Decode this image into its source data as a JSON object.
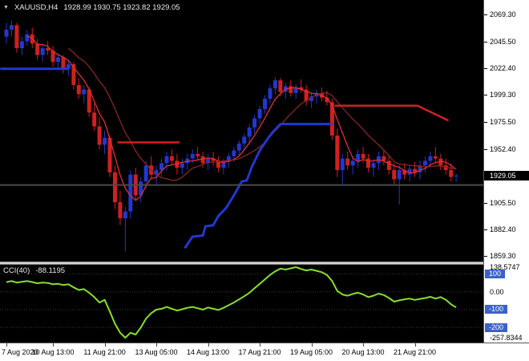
{
  "header": {
    "marker": "▼",
    "symbol_label": "XAUUSD,H4",
    "ohlc_readout": "1928.99 1930.75 1923.82 1929.05"
  },
  "indicator_header": {
    "label": "CCI(40)",
    "value": "-88.1195"
  },
  "colors": {
    "background": "#000000",
    "bull": "#2138cf",
    "bear": "#d02020",
    "ma_fast": "#e03030",
    "ma_slow": "#8b2424",
    "cci_line": "#86df2a",
    "badge_blue": "#3b62c9",
    "object_black": "#4a4a4a",
    "axis_bg": "#ffffff"
  },
  "price_axis": {
    "ticks": [
      "2069.30",
      "2045.50",
      "2022.40",
      "1999.30",
      "1975.50",
      "1952.40",
      "1905.50",
      "1882.40",
      "1859.30"
    ],
    "current": "1929.05"
  },
  "cci_axis": {
    "items": [
      {
        "text": "138.5747",
        "v": 138.5747,
        "style": "plain"
      },
      {
        "text": "100",
        "v": 100,
        "style": "badge"
      },
      {
        "text": "0.00",
        "v": 0,
        "style": "plain"
      },
      {
        "text": "-100",
        "v": -100,
        "style": "badge"
      },
      {
        "text": "-200",
        "v": -200,
        "style": "badge"
      },
      {
        "text": "-257.8344",
        "v": -257.8344,
        "style": "plain"
      }
    ]
  },
  "time_axis": {
    "items": [
      {
        "text": "7 Aug 2020",
        "i": 0
      },
      {
        "text": "10 Aug 13:00",
        "i": 9
      },
      {
        "text": "11 Aug 21:00",
        "i": 19
      },
      {
        "text": "13 Aug 05:00",
        "i": 29
      },
      {
        "text": "14 Aug 13:00",
        "i": 39
      },
      {
        "text": "17 Aug 21:00",
        "i": 49
      },
      {
        "text": "19 Aug 05:00",
        "i": 59
      },
      {
        "text": "20 Aug 13:00",
        "i": 69
      },
      {
        "text": "21 Aug 21:00",
        "i": 79
      }
    ]
  },
  "chart_data": {
    "type": "candlestick",
    "symbol": "XAUUSD",
    "timeframe": "H4",
    "last_price": 1929.05,
    "price_range": [
      1854.4,
      2081.9
    ],
    "ohlc": [
      [
        2050,
        2062,
        2044,
        2056
      ],
      [
        2056,
        2064,
        2050,
        2060
      ],
      [
        2060,
        2062,
        2036,
        2040
      ],
      [
        2040,
        2050,
        2034,
        2046
      ],
      [
        2046,
        2056,
        2042,
        2052
      ],
      [
        2052,
        2058,
        2040,
        2044
      ],
      [
        2044,
        2048,
        2030,
        2034
      ],
      [
        2034,
        2044,
        2028,
        2040
      ],
      [
        2040,
        2046,
        2034,
        2038
      ],
      [
        2038,
        2042,
        2024,
        2028
      ],
      [
        2028,
        2036,
        2022,
        2032
      ],
      [
        2032,
        2034,
        2018,
        2022
      ],
      [
        2022,
        2030,
        2016,
        2026
      ],
      [
        2026,
        2028,
        2004,
        2008
      ],
      [
        2008,
        2014,
        1996,
        2000
      ],
      [
        2000,
        2008,
        1992,
        2004
      ],
      [
        2004,
        2006,
        1980,
        1984
      ],
      [
        1984,
        1992,
        1968,
        1972
      ],
      [
        1972,
        1980,
        1952,
        1956
      ],
      [
        1956,
        1968,
        1948,
        1962
      ],
      [
        1962,
        1964,
        1928,
        1932
      ],
      [
        1932,
        1938,
        1900,
        1906
      ],
      [
        1906,
        1916,
        1886,
        1892
      ],
      [
        1892,
        1902,
        1863,
        1898
      ],
      [
        1898,
        1934,
        1892,
        1930
      ],
      [
        1930,
        1936,
        1908,
        1912
      ],
      [
        1912,
        1928,
        1906,
        1924
      ],
      [
        1924,
        1942,
        1918,
        1938
      ],
      [
        1938,
        1946,
        1926,
        1930
      ],
      [
        1930,
        1938,
        1920,
        1934
      ],
      [
        1934,
        1944,
        1928,
        1940
      ],
      [
        1940,
        1950,
        1934,
        1946
      ],
      [
        1946,
        1952,
        1938,
        1942
      ],
      [
        1942,
        1948,
        1930,
        1936
      ],
      [
        1936,
        1944,
        1930,
        1940
      ],
      [
        1940,
        1948,
        1934,
        1944
      ],
      [
        1944,
        1952,
        1940,
        1948
      ],
      [
        1948,
        1954,
        1942,
        1946
      ],
      [
        1946,
        1950,
        1936,
        1940
      ],
      [
        1940,
        1948,
        1934,
        1944
      ],
      [
        1944,
        1950,
        1938,
        1942
      ],
      [
        1942,
        1946,
        1932,
        1936
      ],
      [
        1936,
        1944,
        1930,
        1941
      ],
      [
        1941,
        1949,
        1936,
        1946
      ],
      [
        1946,
        1954,
        1941,
        1951
      ],
      [
        1951,
        1960,
        1946,
        1957
      ],
      [
        1957,
        1966,
        1952,
        1963
      ],
      [
        1963,
        1974,
        1958,
        1971
      ],
      [
        1971,
        1982,
        1966,
        1979
      ],
      [
        1979,
        1990,
        1974,
        1987
      ],
      [
        1987,
        1999,
        1983,
        1996
      ],
      [
        1996,
        2008,
        1992,
        2005
      ],
      [
        2005,
        2015,
        2000,
        2012
      ],
      [
        2012,
        2014,
        1998,
        2002
      ],
      [
        2002,
        2010,
        1996,
        2007
      ],
      [
        2007,
        2012,
        1998,
        2001
      ],
      [
        2001,
        2009,
        1996,
        2006
      ],
      [
        2006,
        2013,
        2001,
        2004
      ],
      [
        2004,
        2008,
        1990,
        1994
      ],
      [
        1994,
        2002,
        1988,
        1998
      ],
      [
        1998,
        2004,
        1992,
        2001
      ],
      [
        2001,
        2006,
        1994,
        1997
      ],
      [
        1997,
        2003,
        1990,
        1993
      ],
      [
        1993,
        1996,
        1960,
        1964
      ],
      [
        1964,
        1970,
        1928,
        1934
      ],
      [
        1934,
        1948,
        1922,
        1944
      ],
      [
        1944,
        1950,
        1934,
        1938
      ],
      [
        1938,
        1946,
        1930,
        1942
      ],
      [
        1942,
        1952,
        1936,
        1948
      ],
      [
        1948,
        1954,
        1940,
        1944
      ],
      [
        1944,
        1948,
        1932,
        1936
      ],
      [
        1936,
        1944,
        1928,
        1940
      ],
      [
        1940,
        1950,
        1934,
        1946
      ],
      [
        1946,
        1952,
        1938,
        1942
      ],
      [
        1942,
        1946,
        1930,
        1934
      ],
      [
        1934,
        1940,
        1922,
        1926
      ],
      [
        1926,
        1938,
        1904,
        1934
      ],
      [
        1934,
        1940,
        1926,
        1930
      ],
      [
        1930,
        1938,
        1924,
        1935
      ],
      [
        1935,
        1941,
        1928,
        1932
      ],
      [
        1932,
        1942,
        1926,
        1938
      ],
      [
        1938,
        1946,
        1932,
        1942
      ],
      [
        1942,
        1950,
        1936,
        1946
      ],
      [
        1946,
        1954,
        1940,
        1944
      ],
      [
        1944,
        1948,
        1934,
        1938
      ],
      [
        1938,
        1944,
        1930,
        1934
      ],
      [
        1934,
        1940,
        1924,
        1928
      ],
      [
        1928.99,
        1930.75,
        1923.82,
        1929.05
      ]
    ],
    "moving_averages": [
      {
        "name": "ma-fast",
        "period": 5,
        "color_key": "ma_fast"
      },
      {
        "name": "ma-slow",
        "period": 13,
        "color_key": "ma_slow"
      }
    ],
    "objects": [
      {
        "name": "blue-hline-left",
        "color_key": "bull",
        "width": 3,
        "points": [
          [
            -1.2,
            2022
          ],
          [
            12,
            2022
          ]
        ]
      },
      {
        "name": "blue-step-trendline",
        "color_key": "bull",
        "width": 3,
        "points": [
          [
            34.5,
            1866
          ],
          [
            36,
            1876
          ],
          [
            38,
            1877
          ],
          [
            38.5,
            1885
          ],
          [
            40,
            1886
          ],
          [
            41,
            1894
          ],
          [
            42.5,
            1901
          ],
          [
            44,
            1912
          ],
          [
            45.5,
            1924
          ],
          [
            46.5,
            1925
          ],
          [
            47.5,
            1937
          ],
          [
            49,
            1951
          ],
          [
            50.5,
            1961
          ],
          [
            51.5,
            1967
          ],
          [
            53,
            1974
          ],
          [
            63,
            1974
          ]
        ]
      },
      {
        "name": "red-hline-mid",
        "color_key": "bear",
        "width": 2.5,
        "points": [
          [
            21.5,
            1958
          ],
          [
            33.5,
            1958
          ]
        ]
      },
      {
        "name": "red-resistance-line",
        "color_key": "bear",
        "width": 2.5,
        "points": [
          [
            63.5,
            1990
          ],
          [
            79.5,
            1990
          ],
          [
            85.5,
            1977
          ]
        ]
      },
      {
        "name": "black-hline",
        "color_key": "object_black",
        "width": 2,
        "price": 1921
      }
    ],
    "cci": {
      "name": "CCI(40)",
      "range": [
        -257.8344,
        138.5747
      ],
      "levels": [
        100,
        0,
        -100,
        -200
      ],
      "last": -88.1195,
      "values": [
        55,
        60,
        52,
        56,
        60,
        55,
        48,
        52,
        50,
        42,
        45,
        38,
        42,
        25,
        10,
        15,
        -5,
        -30,
        -60,
        -45,
        -110,
        -180,
        -230,
        -257.83,
        -230,
        -240,
        -200,
        -150,
        -120,
        -100,
        -95,
        -85,
        -95,
        -105,
        -98,
        -90,
        -85,
        -92,
        -100,
        -88,
        -95,
        -102,
        -90,
        -75,
        -60,
        -42,
        -25,
        -5,
        20,
        45,
        70,
        95,
        115,
        130,
        125,
        132,
        138.57,
        128,
        120,
        125,
        118,
        110,
        95,
        60,
        5,
        -15,
        -22,
        -12,
        -5,
        -15,
        -30,
        -22,
        -10,
        -18,
        -35,
        -55,
        -48,
        -42,
        -38,
        -45,
        -40,
        -35,
        -28,
        -38,
        -30,
        -45,
        -70,
        -88.12
      ]
    }
  }
}
